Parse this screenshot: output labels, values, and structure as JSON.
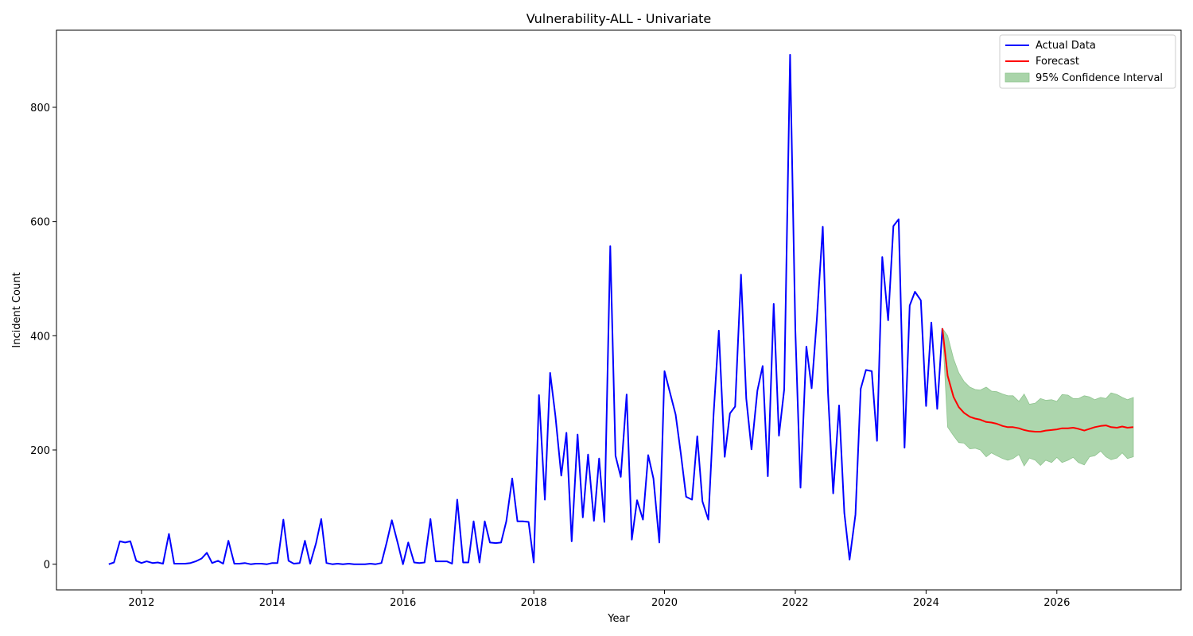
{
  "chart_data": {
    "type": "line",
    "title": "Vulnerability-ALL - Univariate",
    "xlabel": "Year",
    "ylabel": "Incident Count",
    "xlim": [
      2010.7,
      2027.9
    ],
    "ylim": [
      -45,
      935
    ],
    "x_ticks": [
      2012,
      2014,
      2016,
      2018,
      2020,
      2022,
      2024,
      2026
    ],
    "y_ticks": [
      0,
      200,
      400,
      600,
      800
    ],
    "grid": false,
    "legend_position": "top-right",
    "legend": [
      "Actual Data",
      "Forecast",
      "95% Confidence Interval"
    ],
    "colors": {
      "actual": "#0000ff",
      "forecast": "#ff0000",
      "ci_fill": "#a9d4a9",
      "ci_edge": "#8fc48f"
    },
    "series": [
      {
        "name": "Actual Data",
        "x": [
          2011.5,
          2011.58,
          2011.67,
          2011.75,
          2011.83,
          2011.92,
          2012.0,
          2012.08,
          2012.17,
          2012.25,
          2012.33,
          2012.42,
          2012.5,
          2012.58,
          2012.67,
          2012.75,
          2012.83,
          2012.92,
          2013.0,
          2013.08,
          2013.17,
          2013.25,
          2013.33,
          2013.42,
          2013.5,
          2013.58,
          2013.67,
          2013.75,
          2013.83,
          2013.92,
          2014.0,
          2014.08,
          2014.17,
          2014.25,
          2014.33,
          2014.42,
          2014.5,
          2014.58,
          2014.67,
          2014.75,
          2014.83,
          2014.92,
          2015.0,
          2015.08,
          2015.17,
          2015.25,
          2015.33,
          2015.42,
          2015.5,
          2015.58,
          2015.67,
          2015.75,
          2015.83,
          2015.92,
          2016.0,
          2016.08,
          2016.17,
          2016.25,
          2016.33,
          2016.42,
          2016.5,
          2016.58,
          2016.67,
          2016.75,
          2016.83,
          2016.92,
          2017.0,
          2017.08,
          2017.17,
          2017.25,
          2017.33,
          2017.42,
          2017.5,
          2017.58,
          2017.67,
          2017.75,
          2017.83,
          2017.92,
          2018.0,
          2018.08,
          2018.17,
          2018.25,
          2018.33,
          2018.42,
          2018.5,
          2018.58,
          2018.67,
          2018.75,
          2018.83,
          2018.92,
          2019.0,
          2019.08,
          2019.17,
          2019.25,
          2019.33,
          2019.42,
          2019.5,
          2019.58,
          2019.67,
          2019.75,
          2019.83,
          2019.92,
          2020.0,
          2020.08,
          2020.17,
          2020.25,
          2020.33,
          2020.42,
          2020.5,
          2020.58,
          2020.67,
          2020.75,
          2020.83,
          2020.92,
          2021.0,
          2021.08,
          2021.17,
          2021.25,
          2021.33,
          2021.42,
          2021.5,
          2021.58,
          2021.67,
          2021.75,
          2021.83,
          2021.92,
          2022.0,
          2022.08,
          2022.17,
          2022.25,
          2022.33,
          2022.42,
          2022.5,
          2022.58,
          2022.67,
          2022.75,
          2022.83,
          2022.92,
          2023.0,
          2023.08,
          2023.17,
          2023.25,
          2023.33,
          2023.42,
          2023.5,
          2023.58,
          2023.67,
          2023.75,
          2023.83,
          2023.92,
          2024.0,
          2024.08,
          2024.17,
          2024.25
        ],
        "y": [
          0,
          3,
          40,
          38,
          40,
          6,
          2,
          5,
          2,
          3,
          1,
          53,
          1,
          1,
          1,
          2,
          5,
          10,
          20,
          2,
          6,
          1,
          41,
          1,
          1,
          2,
          0,
          1,
          1,
          0,
          2,
          2,
          78,
          6,
          1,
          2,
          41,
          1,
          37,
          79,
          2,
          0,
          1,
          0,
          1,
          0,
          0,
          0,
          1,
          0,
          2,
          38,
          77,
          37,
          0,
          38,
          3,
          2,
          3,
          79,
          5,
          5,
          5,
          1,
          113,
          3,
          3,
          75,
          3,
          75,
          38,
          37,
          38,
          75,
          150,
          75,
          75,
          74,
          3,
          296,
          113,
          335,
          260,
          155,
          230,
          40,
          227,
          82,
          192,
          76,
          185,
          74,
          557,
          190,
          153,
          297,
          43,
          112,
          78,
          191,
          150,
          38,
          338,
          302,
          262,
          193,
          118,
          113,
          224,
          110,
          78,
          262,
          409,
          188,
          264,
          276,
          507,
          290,
          201,
          304,
          347,
          154,
          456,
          225,
          306,
          892,
          410,
          134,
          381,
          308,
          430,
          591,
          300,
          124,
          278,
          90,
          8,
          87,
          307,
          340,
          338,
          216,
          538,
          427,
          592,
          604,
          204,
          453,
          477,
          462,
          277,
          423,
          272,
          413
        ]
      },
      {
        "name": "Forecast",
        "x": [
          2024.25,
          2024.33,
          2024.42,
          2024.5,
          2024.58,
          2024.67,
          2024.75,
          2024.83,
          2024.92,
          2025.0,
          2025.08,
          2025.17,
          2025.25,
          2025.33,
          2025.42,
          2025.5,
          2025.58,
          2025.67,
          2025.75,
          2025.83,
          2025.92,
          2026.0,
          2026.08,
          2026.17,
          2026.25,
          2026.33,
          2026.42,
          2026.5,
          2026.58,
          2026.67,
          2026.75,
          2026.83,
          2026.92,
          2027.0,
          2027.08,
          2027.17
        ],
        "y": [
          413,
          330,
          293,
          275,
          265,
          258,
          255,
          253,
          249,
          248,
          246,
          242,
          240,
          240,
          238,
          235,
          233,
          232,
          232,
          234,
          235,
          236,
          238,
          238,
          239,
          237,
          234,
          237,
          240,
          242,
          243,
          240,
          239,
          241,
          239,
          240
        ]
      },
      {
        "name": "95% Confidence Interval",
        "x": [
          2024.25,
          2024.33,
          2024.42,
          2024.5,
          2024.58,
          2024.67,
          2024.75,
          2024.83,
          2024.92,
          2025.0,
          2025.08,
          2025.17,
          2025.25,
          2025.33,
          2025.42,
          2025.5,
          2025.58,
          2025.67,
          2025.75,
          2025.83,
          2025.92,
          2026.0,
          2026.08,
          2026.17,
          2026.25,
          2026.33,
          2026.42,
          2026.5,
          2026.58,
          2026.67,
          2026.75,
          2026.83,
          2026.92,
          2027.0,
          2027.08,
          2027.17
        ],
        "upper": [
          413,
          400,
          360,
          335,
          320,
          310,
          306,
          305,
          310,
          303,
          302,
          298,
          295,
          295,
          285,
          298,
          280,
          282,
          290,
          287,
          288,
          285,
          297,
          296,
          290,
          290,
          295,
          293,
          288,
          292,
          290,
          300,
          297,
          292,
          288,
          292
        ],
        "lower": [
          413,
          240,
          225,
          213,
          212,
          202,
          203,
          200,
          188,
          195,
          190,
          185,
          182,
          185,
          192,
          172,
          186,
          182,
          173,
          182,
          178,
          187,
          178,
          182,
          187,
          178,
          174,
          188,
          190,
          198,
          188,
          183,
          186,
          195,
          185,
          188
        ]
      }
    ]
  }
}
